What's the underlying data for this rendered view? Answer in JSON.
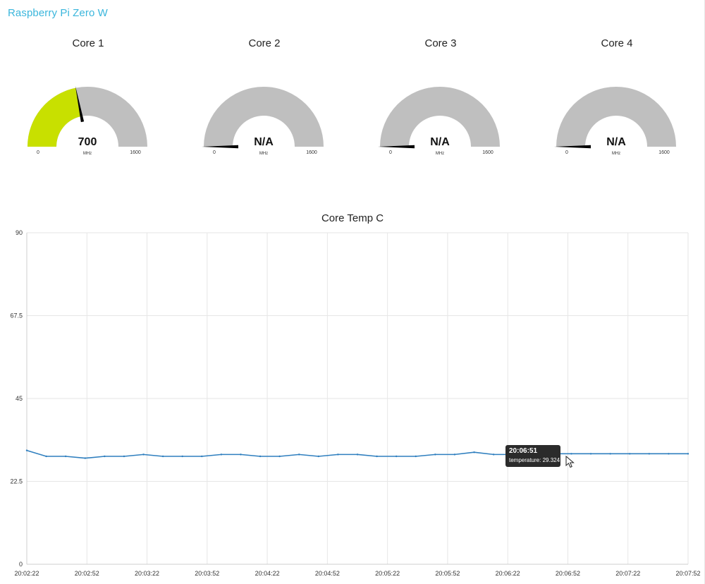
{
  "app": {
    "title": "Raspberry Pi Zero W"
  },
  "colors": {
    "title": "#3ab6dc",
    "gauge_fill": "#c8e000",
    "gauge_track": "#bfbfbf",
    "needle": "#000000",
    "line": "#2f7fbf",
    "grid": "#e6e6e6",
    "tooltip_bg": "#2b2b2b"
  },
  "gauges": [
    {
      "title": "Core 1",
      "value_text": "700",
      "value": 700,
      "min": "0",
      "max": "1600",
      "units": "MHz"
    },
    {
      "title": "Core 2",
      "value_text": "N/A",
      "value": null,
      "min": "0",
      "max": "1600",
      "units": "MHz"
    },
    {
      "title": "Core 3",
      "value_text": "N/A",
      "value": null,
      "min": "0",
      "max": "1600",
      "units": "MHz"
    },
    {
      "title": "Core 4",
      "value_text": "N/A",
      "value": null,
      "min": "0",
      "max": "1600",
      "units": "MHz"
    }
  ],
  "chart_data": {
    "type": "line",
    "title": "Core Temp C",
    "xlabel": "",
    "ylabel": "",
    "ylim": [
      0,
      90
    ],
    "y_ticks": [
      "0",
      "22.5",
      "45",
      "67.5",
      "90"
    ],
    "x_ticks": [
      "20:02:22",
      "20:02:52",
      "20:03:22",
      "20:03:52",
      "20:04:22",
      "20:04:52",
      "20:05:22",
      "20:05:52",
      "20:06:22",
      "20:06:52",
      "20:07:22",
      "20:07:52"
    ],
    "grid": true,
    "series": [
      {
        "values": [
          30.9,
          29.3,
          29.3,
          28.8,
          29.3,
          29.3,
          29.8,
          29.3,
          29.3,
          29.3,
          29.8,
          29.8,
          29.3,
          29.3,
          29.8,
          29.3,
          29.8,
          29.8,
          29.3,
          29.3,
          29.3,
          29.8,
          29.8,
          30.4,
          29.8,
          29.8,
          30.0,
          30.0,
          30.0,
          30.0,
          30.0,
          30.0,
          30.0,
          30.0,
          30.0
        ]
      }
    ],
    "tooltip": {
      "time": "20:06:51",
      "text": "temperature: 29.324"
    }
  }
}
